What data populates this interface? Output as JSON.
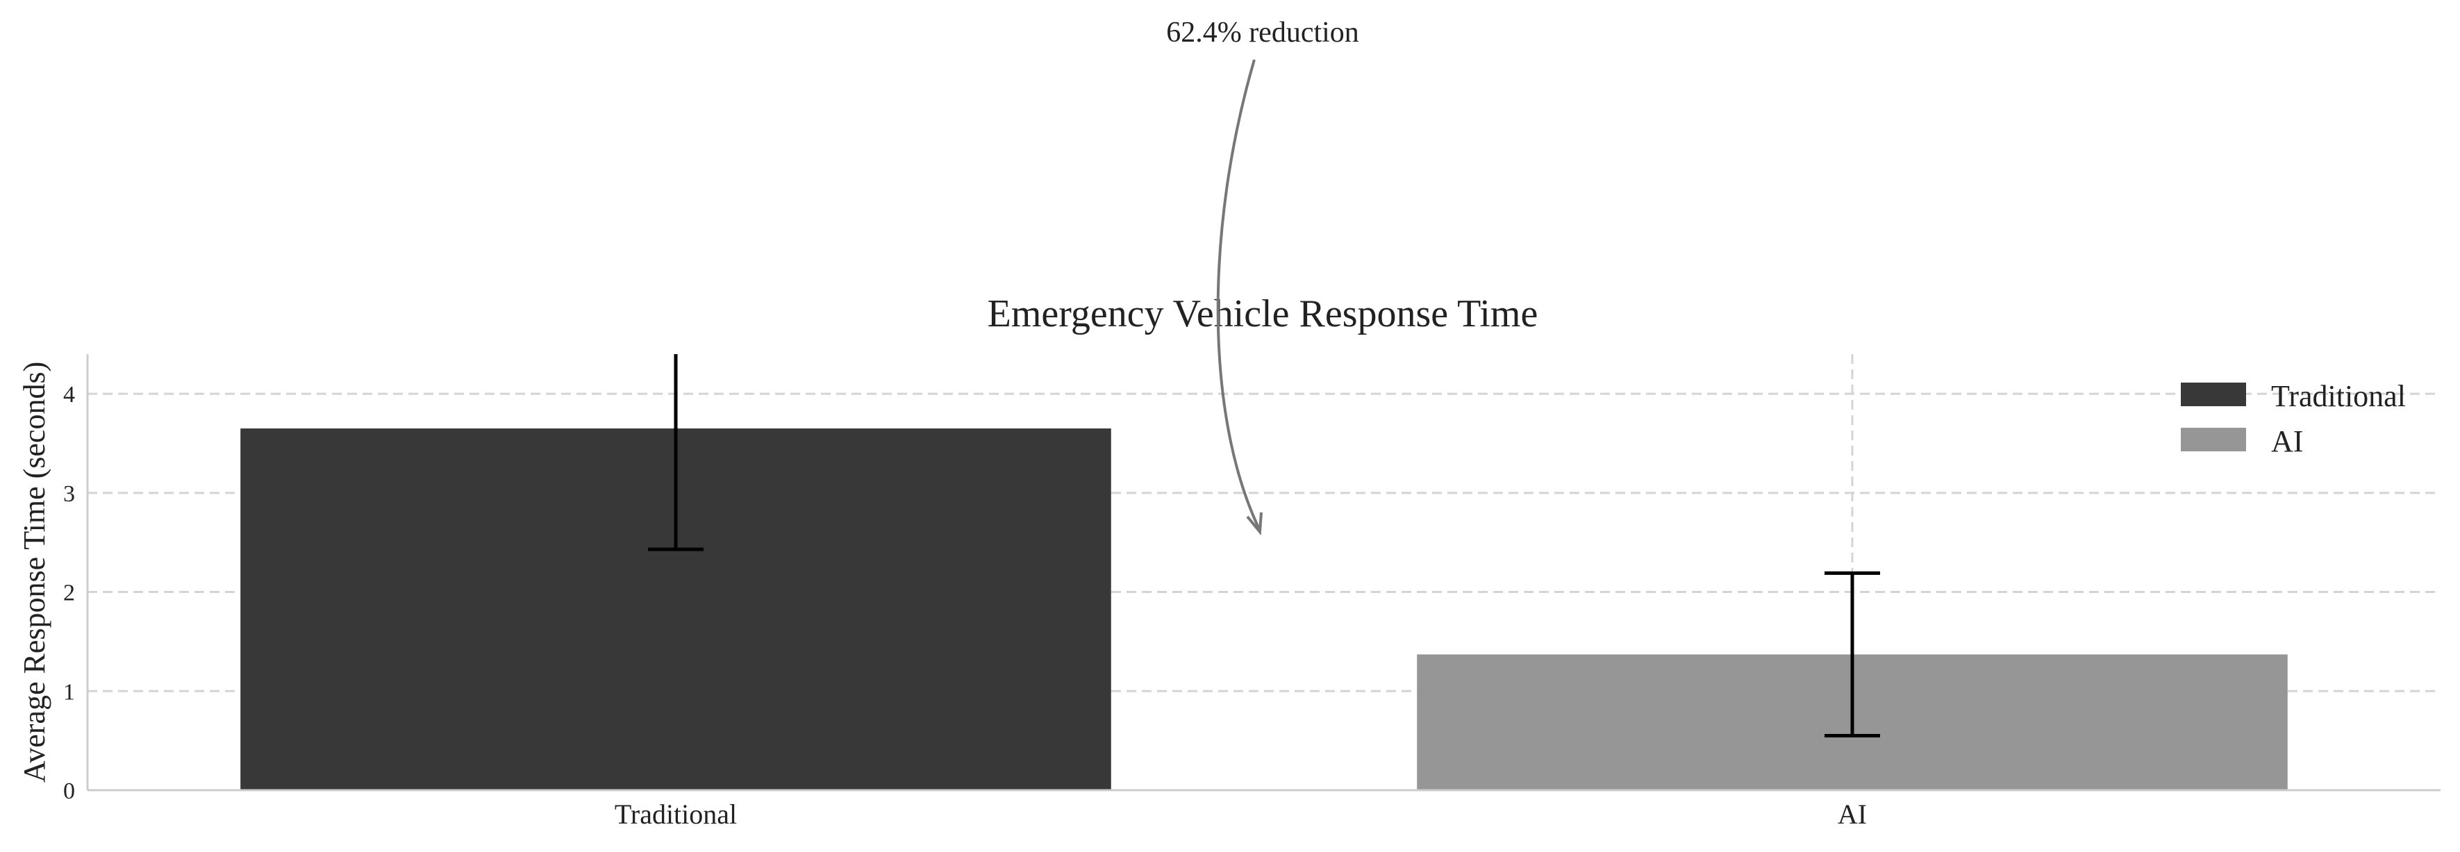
{
  "chart_data": {
    "type": "bar",
    "title": "Emergency Vehicle Response Time",
    "xlabel": "",
    "ylabel": "Average Response Time (seconds)",
    "categories": [
      "Traditional",
      "AI"
    ],
    "values": [
      3.65,
      1.37
    ],
    "error": [
      1.22,
      0.82
    ],
    "colors": [
      "#383838",
      "#969696"
    ],
    "ylim": [
      0,
      4.4
    ],
    "yticks": [
      "0",
      "1",
      "2",
      "3",
      "4"
    ],
    "grid": true,
    "legend": {
      "placement": "top-right",
      "entries": [
        "Traditional",
        "AI"
      ]
    },
    "annotation": "62.4% reduction"
  }
}
